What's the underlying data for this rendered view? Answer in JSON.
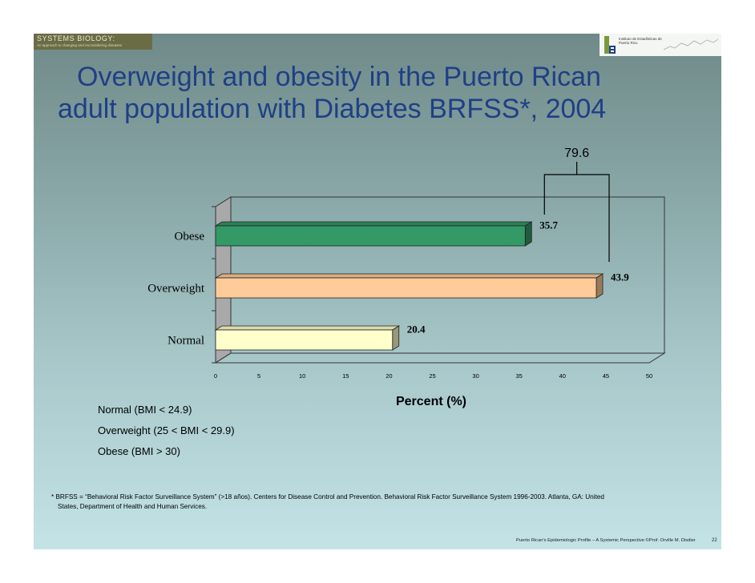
{
  "header": {
    "logo_left_name": "SYSTEMS BIOLOGY:",
    "logo_left_sub": "An approach to changing and reconsidering diseases",
    "logo_right_text": "Instituto de Estadísticas de Puerto Rico"
  },
  "title_lines": [
    "Overweight and obesity in the Puerto Rican",
    "adult population with Diabetes BRFSS*, 2004"
  ],
  "chart_data": {
    "type": "bar",
    "orientation": "horizontal",
    "three_d": true,
    "categories": [
      "Obese",
      "Overweight",
      "Normal"
    ],
    "values": [
      35.7,
      43.9,
      20.4
    ],
    "value_labels": [
      "35.7",
      "43.9",
      "20.4"
    ],
    "colors": [
      "#339966",
      "#ffcc99",
      "#ffffcc"
    ],
    "xlabel": "Percent (%)",
    "ylabel": "",
    "xlim": [
      0,
      50
    ],
    "x_ticks": [
      0,
      5,
      10,
      15,
      20,
      25,
      30,
      35,
      40,
      45,
      50
    ],
    "annotation": {
      "text": "79.6",
      "brackets": [
        "Obese",
        "Overweight"
      ]
    },
    "grid": false
  },
  "legend_notes": [
    "Normal (BMI < 24.9)",
    "Overweight (25 < BMI < 29.9)",
    "Obese  (BMI > 30)"
  ],
  "footnote": [
    "* BRFSS = “Behavioral Risk Factor Surveillance System” (>18 años). Centers for Disease Control and Prevention. Behavioral Risk Factor Surveillance System 1996-2003. Atlanta, GA: United",
    "States, Department of Health and Human Services."
  ],
  "footer": {
    "credit": "Puerto Rican's Epidemiologic Profile – A Systemic Perspective ©Prof. Orville M. Disdier",
    "page_number": "22"
  }
}
